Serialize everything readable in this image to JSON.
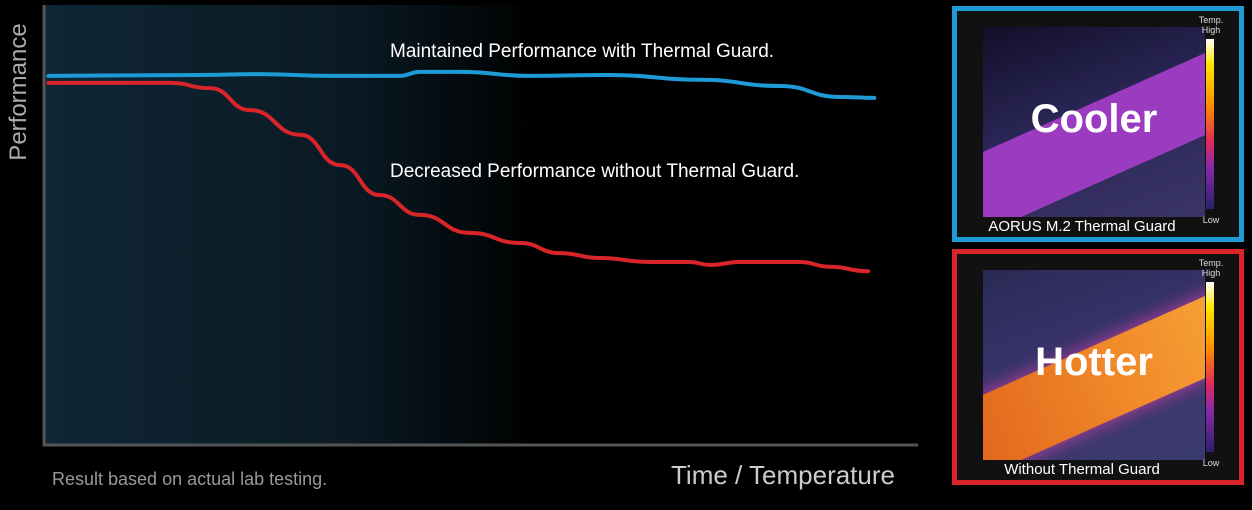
{
  "chart_data": {
    "type": "line",
    "xlabel": "Time / Temperature",
    "ylabel": "Performance",
    "xlim": [
      0,
      100
    ],
    "ylim": [
      0,
      100
    ],
    "grid": false,
    "footnote": "Result based on actual lab testing.",
    "series": [
      {
        "name": "Maintained Performance with Thermal Guard.",
        "color": "#1e9ad6",
        "x": [
          0.5,
          17.8,
          24.7,
          32.7,
          40.7,
          43.0,
          47.6,
          55.6,
          64.8,
          75.1,
          84.2,
          91.1,
          95.0
        ],
        "y": [
          83.9,
          84.1,
          84.3,
          83.9,
          83.9,
          84.8,
          84.8,
          83.9,
          84.1,
          83.0,
          81.6,
          79.1,
          78.9
        ]
      },
      {
        "name": "Decreased Performance without Thermal Guard.",
        "color": "#d8252a",
        "x": [
          0.5,
          14.4,
          19.0,
          23.6,
          29.3,
          33.9,
          38.4,
          43.0,
          48.7,
          54.5,
          59.0,
          63.6,
          69.3,
          73.9,
          76.2,
          79.6,
          86.5,
          89.9,
          94.3
        ],
        "y": [
          82.3,
          82.3,
          81.1,
          76.1,
          70.5,
          63.6,
          56.8,
          52.3,
          48.2,
          45.9,
          43.6,
          42.5,
          41.6,
          41.6,
          40.9,
          41.6,
          41.6,
          40.5,
          39.5
        ]
      }
    ]
  },
  "panels": {
    "cool": {
      "label": "Cooler",
      "caption": "AORUS M.2 Thermal Guard",
      "temp": "Temp.",
      "high": "High",
      "low": "Low"
    },
    "hot": {
      "label": "Hotter",
      "caption": "Without Thermal Guard",
      "temp": "Temp.",
      "high": "High",
      "low": "Low"
    }
  }
}
